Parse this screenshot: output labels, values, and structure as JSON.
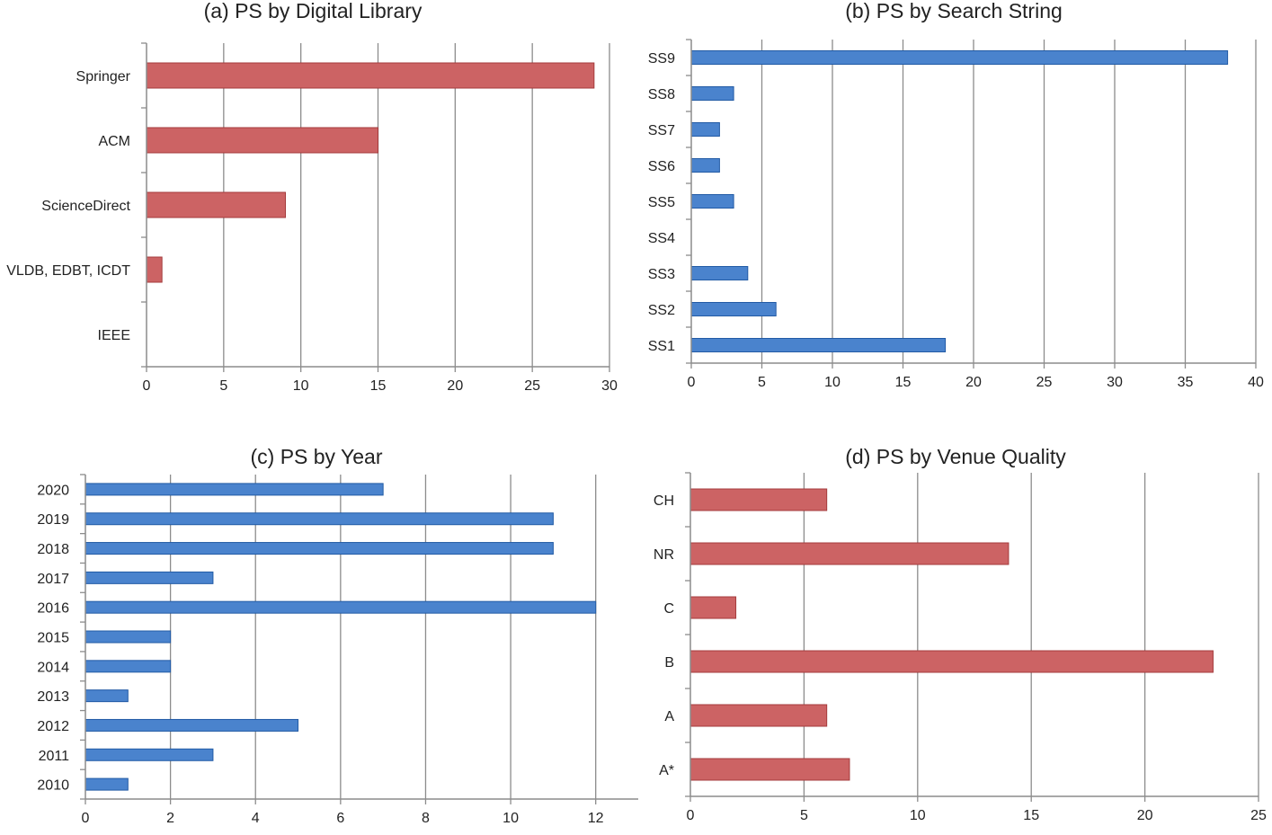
{
  "chart_data": [
    {
      "type": "bar",
      "orientation": "horizontal",
      "title": "(a) PS by Digital Library",
      "categories": [
        "Springer",
        "ACM",
        "ScienceDirect",
        "VLDB, EDBT, ICDT",
        "IEEE"
      ],
      "values": [
        29,
        15,
        9,
        1,
        0
      ],
      "xlim": [
        0,
        30
      ],
      "xticks": [
        "0",
        "5",
        "10",
        "15",
        "20",
        "25",
        "30"
      ],
      "color": "#cc6364",
      "grid": true
    },
    {
      "type": "bar",
      "orientation": "horizontal",
      "title": "(b) PS by Search String",
      "categories": [
        "SS9",
        "SS8",
        "SS7",
        "SS6",
        "SS5",
        "SS4",
        "SS3",
        "SS2",
        "SS1"
      ],
      "values": [
        38,
        3,
        2,
        2,
        3,
        0,
        4,
        6,
        18
      ],
      "xlim": [
        0,
        40
      ],
      "xticks": [
        "0",
        "5",
        "10",
        "15",
        "20",
        "25",
        "30",
        "35",
        "40"
      ],
      "color": "#4a83cd",
      "grid": true
    },
    {
      "type": "bar",
      "orientation": "horizontal",
      "title": "(c) PS by Year",
      "categories": [
        "2020",
        "2019",
        "2018",
        "2017",
        "2016",
        "2015",
        "2014",
        "2013",
        "2012",
        "2011",
        "2010"
      ],
      "values": [
        7,
        11,
        11,
        3,
        12,
        2,
        2,
        1,
        5,
        3,
        1
      ],
      "xlim": [
        0,
        13
      ],
      "xticks": [
        "0",
        "2",
        "4",
        "6",
        "8",
        "10",
        "12"
      ],
      "color": "#4a83cd",
      "grid": true
    },
    {
      "type": "bar",
      "orientation": "horizontal",
      "title": "(d) PS by Venue Quality",
      "categories": [
        "CH",
        "NR",
        "C",
        "B",
        "A",
        "A*"
      ],
      "values": [
        6,
        14,
        2,
        23,
        6,
        7
      ],
      "xlim": [
        0,
        25
      ],
      "xticks": [
        "0",
        "5",
        "10",
        "15",
        "20",
        "25"
      ],
      "color": "#cc6364",
      "grid": true
    }
  ]
}
